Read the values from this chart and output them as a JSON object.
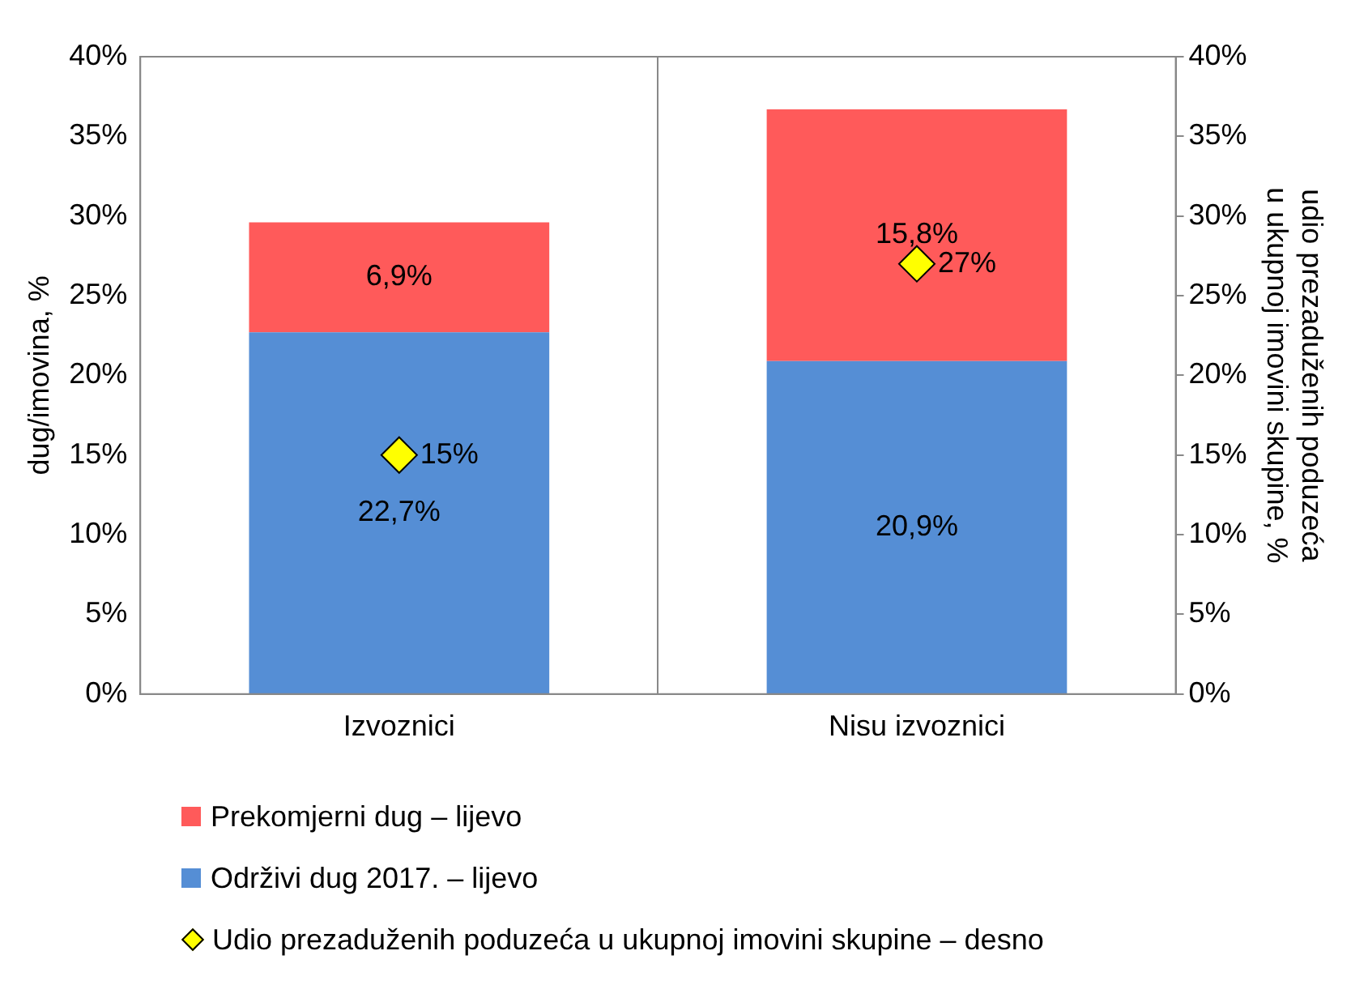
{
  "chart_data": {
    "type": "bar",
    "stacked": true,
    "categories": [
      "Izvoznici",
      "Nisu izvoznici"
    ],
    "series": [
      {
        "name": "Održivi dug 2017. – lijevo",
        "color": "#558ed5",
        "values": [
          22.7,
          20.9
        ],
        "value_labels": [
          "22,7%",
          "20,9%"
        ]
      },
      {
        "name": "Prekomjerni dug – lijevo",
        "color": "#ff5a5a",
        "values": [
          6.9,
          15.8
        ],
        "value_labels": [
          "6,9%",
          "15,8%"
        ]
      },
      {
        "name": "Udio prezaduženih poduzeća u ukupnoj imovini skupine – desno",
        "type": "scatter",
        "axis": "y2",
        "color": "#ffff00",
        "x": [
          "Izvoznici",
          "Nisu izvoznici"
        ],
        "values": [
          15,
          27
        ],
        "value_labels": [
          "15%",
          "27%"
        ]
      }
    ],
    "ylabel": "dug/imovina, %",
    "y2label": "udio prezaduženih poduzeća\nu ukupnoj imovini skupine, %",
    "ylim": [
      0,
      40
    ],
    "yticks": [
      {
        "value": 0,
        "label": "0%"
      },
      {
        "value": 5,
        "label": "5%"
      },
      {
        "value": 10,
        "label": "10%"
      },
      {
        "value": 15,
        "label": "15%"
      },
      {
        "value": 20,
        "label": "20%"
      },
      {
        "value": 25,
        "label": "25%"
      },
      {
        "value": 30,
        "label": "30%"
      },
      {
        "value": 35,
        "label": "35%"
      },
      {
        "value": 40,
        "label": "40%"
      }
    ],
    "y2lim": [
      0,
      40
    ],
    "y2ticks": [
      {
        "value": 0,
        "label": "0%"
      },
      {
        "value": 5,
        "label": "5%"
      },
      {
        "value": 10,
        "label": "10%"
      },
      {
        "value": 15,
        "label": "15%"
      },
      {
        "value": 20,
        "label": "20%"
      },
      {
        "value": 25,
        "label": "25%"
      },
      {
        "value": 30,
        "label": "30%"
      },
      {
        "value": 35,
        "label": "35%"
      },
      {
        "value": 40,
        "label": "40%"
      }
    ],
    "grid": "x",
    "legend": "bottom",
    "marker": "diamond"
  }
}
